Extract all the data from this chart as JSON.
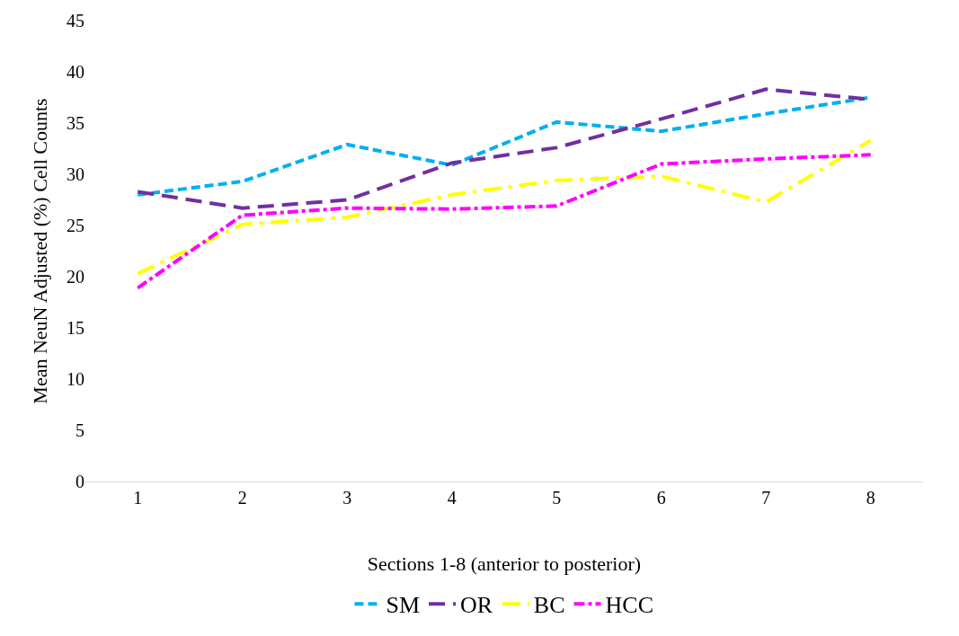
{
  "chart_data": {
    "type": "line",
    "xlabel": "Sections 1-8 (anterior to posterior)",
    "ylabel": "Mean NeuN Adjusted (%) Cell Counts",
    "categories": [
      "1",
      "2",
      "3",
      "4",
      "5",
      "6",
      "7",
      "8"
    ],
    "series": [
      {
        "name": "SM",
        "color": "#00b0f0",
        "line_style": "dashed",
        "values": [
          28.0,
          29.3,
          32.9,
          30.9,
          35.1,
          34.2,
          35.9,
          37.5
        ]
      },
      {
        "name": "OR",
        "color": "#7030a0",
        "line_style": "dashed",
        "values": [
          28.3,
          26.7,
          27.5,
          31.1,
          32.6,
          35.4,
          38.3,
          37.3
        ]
      },
      {
        "name": "BC",
        "color": "#ffff00",
        "line_style": "dashed",
        "values": [
          20.3,
          25.1,
          25.8,
          28.0,
          29.4,
          29.8,
          27.3,
          33.3
        ]
      },
      {
        "name": "HCC",
        "color": "#ff00ff",
        "line_style": "dashed",
        "values": [
          18.9,
          26.0,
          26.7,
          26.6,
          26.9,
          31.0,
          31.5,
          31.9
        ]
      }
    ],
    "ylim": [
      0,
      45
    ],
    "yticks": [
      0,
      5,
      10,
      15,
      20,
      25,
      30,
      35,
      40,
      45
    ],
    "grid": false,
    "legend": "bottom",
    "marker": "none"
  }
}
